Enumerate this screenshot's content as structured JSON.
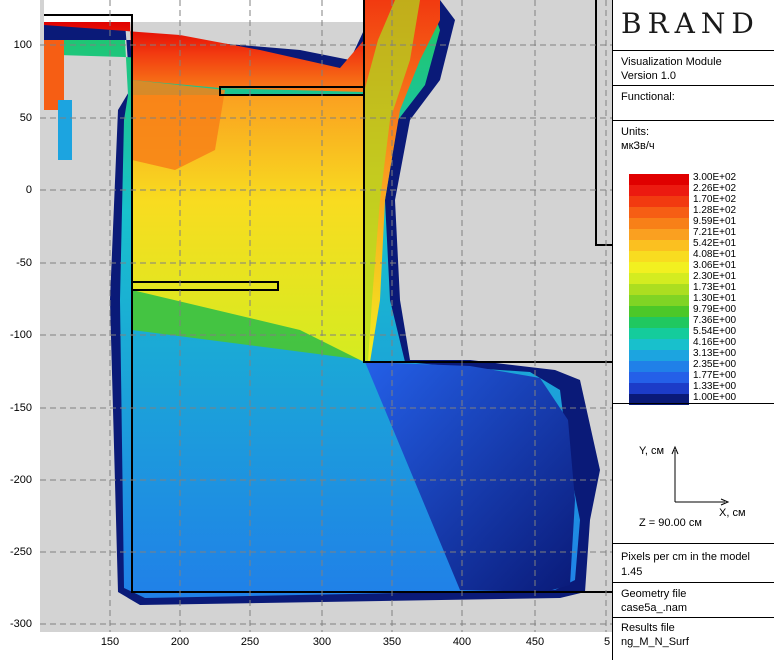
{
  "plot": {
    "y_ticks": [
      "100",
      "50",
      "0",
      "-50",
      "-100",
      "-150",
      "-200",
      "-250",
      "-300"
    ],
    "x_ticks": [
      "150",
      "200",
      "250",
      "300",
      "350",
      "400",
      "450",
      "5"
    ],
    "background_color": "#d3d3d3",
    "grid_color": "#808080"
  },
  "panel": {
    "brand": "BRAND",
    "module_title": "Visualization Module",
    "version": "Version 1.0",
    "functional_label": "Functional:",
    "units_label": "Units:",
    "units_value": "мкЗв/ч",
    "legend": [
      {
        "label": "3.00E+02",
        "color": "#e00000"
      },
      {
        "label": "2.26E+02",
        "color": "#ec1a10"
      },
      {
        "label": "1.70E+02",
        "color": "#f23a10"
      },
      {
        "label": "1.28E+02",
        "color": "#f65e14"
      },
      {
        "label": "9.59E+01",
        "color": "#f88018"
      },
      {
        "label": "7.21E+01",
        "color": "#faa020"
      },
      {
        "label": "5.42E+01",
        "color": "#fbc020"
      },
      {
        "label": "4.08E+01",
        "color": "#f8dc20"
      },
      {
        "label": "3.06E+01",
        "color": "#f2f020"
      },
      {
        "label": "2.30E+01",
        "color": "#d4ec20"
      },
      {
        "label": "1.73E+01",
        "color": "#acde20"
      },
      {
        "label": "1.30E+01",
        "color": "#80d424"
      },
      {
        "label": "9.79E+00",
        "color": "#4cc828"
      },
      {
        "label": "7.36E+00",
        "color": "#20c860"
      },
      {
        "label": "5.54E+00",
        "color": "#14cc9c"
      },
      {
        "label": "4.16E+00",
        "color": "#18c0cc"
      },
      {
        "label": "3.13E+00",
        "color": "#1ca4e0"
      },
      {
        "label": "2.35E+00",
        "color": "#2080e8"
      },
      {
        "label": "1.77E+00",
        "color": "#2460e8"
      },
      {
        "label": "1.33E+00",
        "color": "#1c3cc8"
      },
      {
        "label": "1.00E+00",
        "color": "#0a1a78"
      }
    ],
    "axis_y_label": "Y, см",
    "axis_x_label": "X, см",
    "z_label": "Z = 90.00 см",
    "pixels_label": "Pixels per cm in the model",
    "pixels_value": "1.45",
    "geometry_label": "Geometry file",
    "geometry_value": "case5a_.nam",
    "results_label": "Results file",
    "results_value": "ng_M_N_Surf"
  }
}
